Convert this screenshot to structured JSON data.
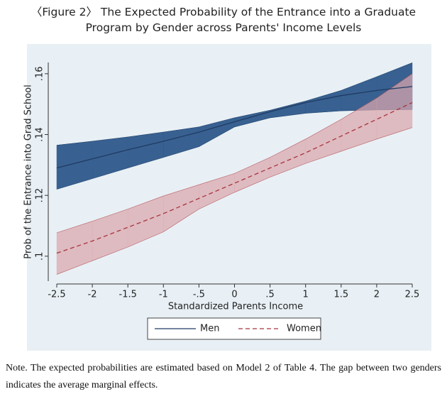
{
  "chart_data": {
    "type": "line-band",
    "title": "〈Figure 2〉 The Expected Probability of the Entrance into a Graduate Program by Gender across Parents' Income Levels",
    "x_label": "Standardized Parents Income",
    "y_label": "Prob of the Entrance into Grad School",
    "x": [
      -2.5,
      -2,
      -1.5,
      -1,
      -0.5,
      0,
      0.5,
      1,
      1.5,
      2,
      2.5
    ],
    "series": [
      {
        "name": "Men",
        "color": "#1f3b63",
        "band_color": "#2f5a8c",
        "dash": false,
        "values": [
          0.129,
          0.132,
          0.135,
          0.1378,
          0.1408,
          0.1442,
          0.1475,
          0.1505,
          0.1528,
          0.1545,
          0.1558
        ],
        "upper": [
          0.1365,
          0.1378,
          0.1392,
          0.1408,
          0.1425,
          0.1455,
          0.148,
          0.151,
          0.1545,
          0.159,
          0.1636
        ],
        "lower": [
          0.122,
          0.1255,
          0.129,
          0.1325,
          0.136,
          0.1425,
          0.1455,
          0.147,
          0.1478,
          0.1481,
          0.1482
        ]
      },
      {
        "name": "Women",
        "color": "#a8343f",
        "band_color": "#dba7ad",
        "dash": true,
        "values": [
          0.101,
          0.105,
          0.1095,
          0.114,
          0.119,
          0.124,
          0.129,
          0.134,
          0.1395,
          0.145,
          0.1505
        ],
        "upper": [
          0.1077,
          0.1115,
          0.1155,
          0.1198,
          0.1235,
          0.1272,
          0.1325,
          0.1385,
          0.145,
          0.152,
          0.16
        ],
        "lower": [
          0.094,
          0.0985,
          0.103,
          0.108,
          0.1155,
          0.121,
          0.126,
          0.1305,
          0.1345,
          0.1385,
          0.1423
        ]
      }
    ],
    "xlim": [
      -2.5,
      2.5
    ],
    "ylim": [
      0.0918,
      0.1637
    ],
    "xticks": [
      {
        "value": -2.5,
        "label": "-2.5"
      },
      -2,
      {
        "value": -1.5,
        "label": "-1.5"
      },
      -1,
      {
        "value": -0.5,
        "label": "-.5"
      },
      0,
      {
        "value": 0.5,
        "label": ".5"
      },
      1,
      {
        "value": 1.5,
        "label": "1.5"
      },
      2,
      {
        "value": 2.5,
        "label": "2.5"
      }
    ],
    "yticks": [
      {
        "value": 0.1,
        "label": ".1"
      },
      {
        "value": 0.12,
        "label": ".12"
      },
      {
        "value": 0.14,
        "label": ".14"
      },
      {
        "value": 0.16,
        "label": ".16"
      }
    ],
    "grid": false,
    "legend": "bottom",
    "note": "Note. The expected probabilities are estimated based on Model 2 of Table 4. The gap between two genders indicates the average marginal effects."
  }
}
